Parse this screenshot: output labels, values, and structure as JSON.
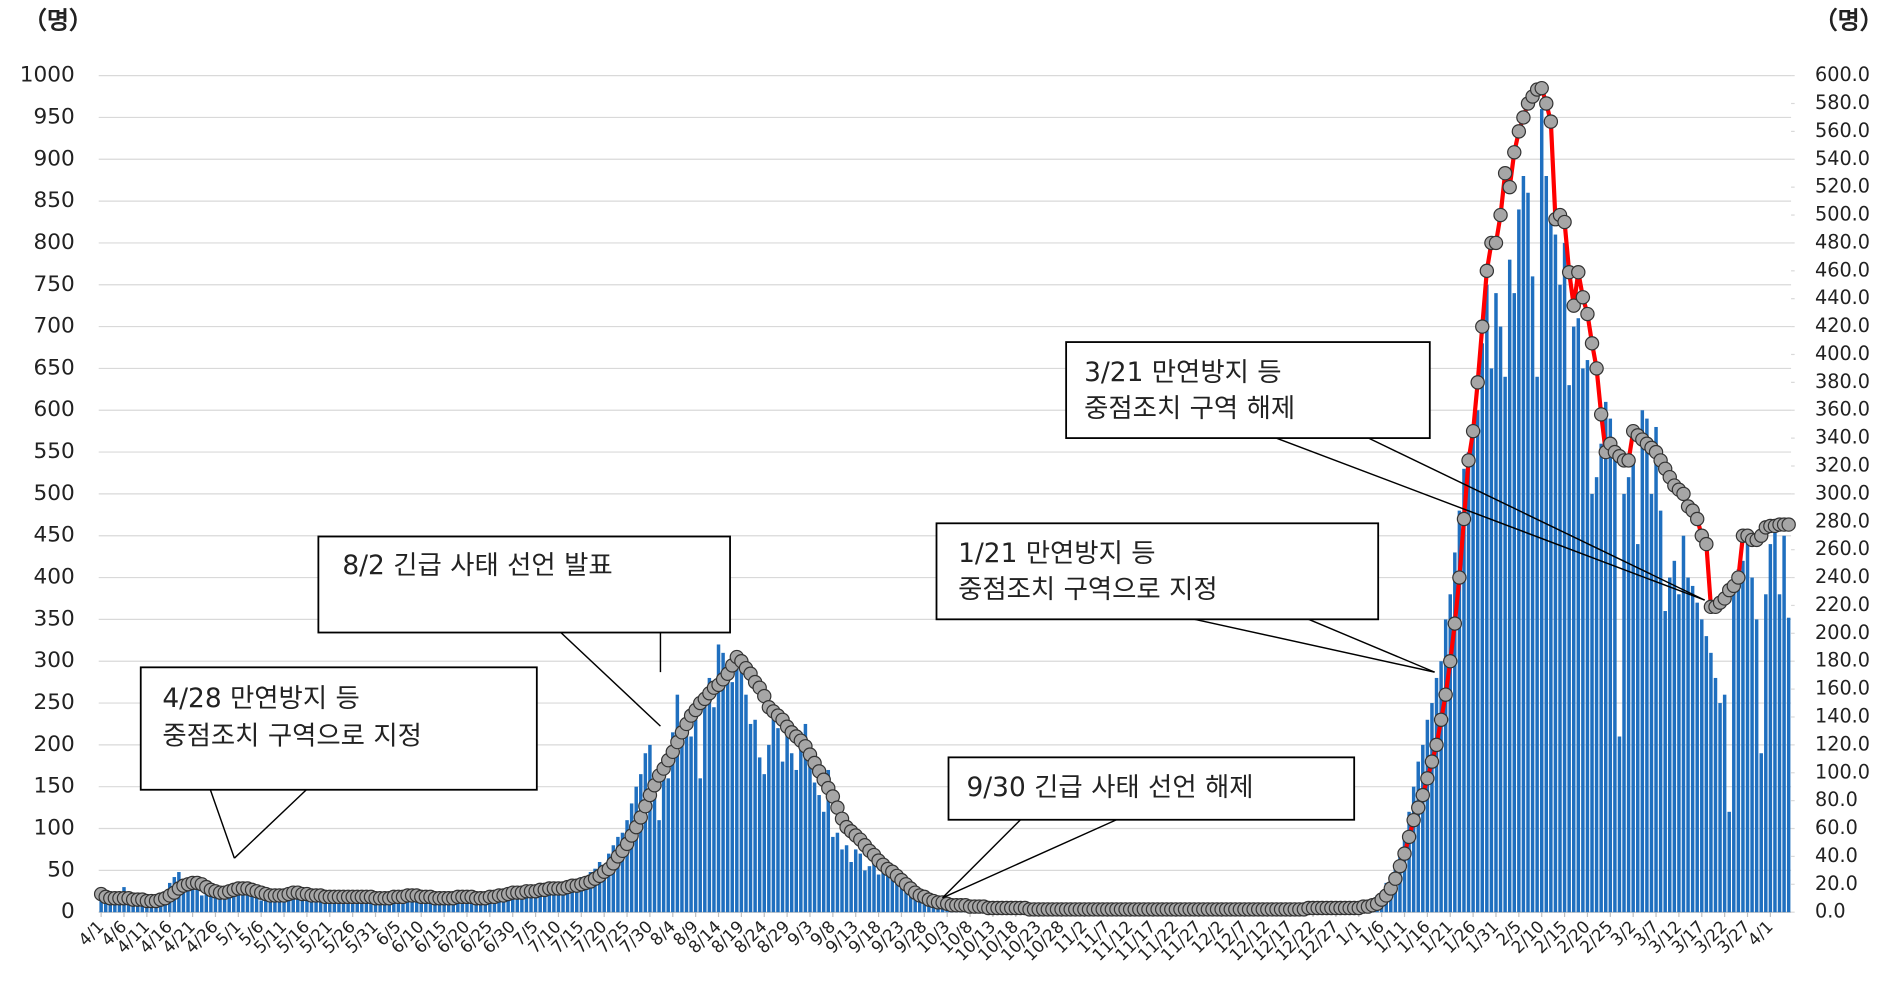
{
  "chart_data": {
    "type": "bar",
    "y_label": "（명）",
    "y2_label": "（명）",
    "ylim": [
      0,
      1000
    ],
    "yticks": [
      0,
      50,
      100,
      150,
      200,
      250,
      300,
      350,
      400,
      450,
      500,
      550,
      600,
      650,
      700,
      750,
      800,
      850,
      900,
      950,
      1000
    ],
    "y2lim": [
      0,
      600
    ],
    "y2ticks": [
      {
        "value": 0,
        "label": "0.0"
      },
      {
        "value": 20,
        "label": "20.0"
      },
      {
        "value": 40,
        "label": "40.0"
      },
      {
        "value": 60,
        "label": "60.0"
      },
      {
        "value": 80,
        "label": "80.0"
      },
      {
        "value": 100,
        "label": "100.0"
      },
      {
        "value": 120,
        "label": "120.0"
      },
      {
        "value": 140,
        "label": "140.0"
      },
      {
        "value": 160,
        "label": "160.0"
      },
      {
        "value": 180,
        "label": "180.0"
      },
      {
        "value": 200,
        "label": "200.0"
      },
      {
        "value": 220,
        "label": "220.0"
      },
      {
        "value": 240,
        "label": "240.0"
      },
      {
        "value": 260,
        "label": "260.0"
      },
      {
        "value": 280,
        "label": "280.0"
      },
      {
        "value": 300,
        "label": "300.0"
      },
      {
        "value": 320,
        "label": "320.0"
      },
      {
        "value": 340,
        "label": "340.0"
      },
      {
        "value": 360,
        "label": "360.0"
      },
      {
        "value": 380,
        "label": "380.0"
      },
      {
        "value": 400,
        "label": "400.0"
      },
      {
        "value": 420,
        "label": "420.0"
      },
      {
        "value": 440,
        "label": "440.0"
      },
      {
        "value": 460,
        "label": "460.0"
      },
      {
        "value": 480,
        "label": "480.0"
      },
      {
        "value": 500,
        "label": "500.0"
      },
      {
        "value": 520,
        "label": "520.0"
      },
      {
        "value": 540,
        "label": "540.0"
      },
      {
        "value": 560,
        "label": "560.0"
      },
      {
        "value": 580,
        "label": "580.0"
      },
      {
        "value": 600,
        "label": "600.0"
      }
    ],
    "grid": true,
    "categories": [
      "4/1",
      null,
      null,
      null,
      null,
      "4/6",
      null,
      null,
      null,
      null,
      "4/11",
      null,
      null,
      null,
      null,
      "4/16",
      null,
      null,
      null,
      null,
      "4/21",
      null,
      null,
      null,
      null,
      "4/26",
      null,
      null,
      null,
      null,
      "5/1",
      null,
      null,
      null,
      null,
      "5/6",
      null,
      null,
      null,
      null,
      "5/11",
      null,
      null,
      null,
      null,
      "5/16",
      null,
      null,
      null,
      null,
      "5/21",
      null,
      null,
      null,
      null,
      "5/26",
      null,
      null,
      null,
      null,
      "5/31",
      null,
      null,
      null,
      null,
      "6/5",
      null,
      null,
      null,
      null,
      "6/10",
      null,
      null,
      null,
      null,
      "6/15",
      null,
      null,
      null,
      null,
      "6/20",
      null,
      null,
      null,
      null,
      "6/25",
      null,
      null,
      null,
      null,
      "6/30",
      null,
      null,
      null,
      null,
      "7/5",
      null,
      null,
      null,
      null,
      "7/10",
      null,
      null,
      null,
      null,
      "7/15",
      null,
      null,
      null,
      null,
      "7/20",
      null,
      null,
      null,
      null,
      "7/25",
      null,
      null,
      null,
      null,
      "7/30",
      null,
      null,
      null,
      null,
      "8/4",
      null,
      null,
      null,
      null,
      "8/9",
      null,
      null,
      null,
      null,
      "8/14",
      null,
      null,
      null,
      null,
      "8/19",
      null,
      null,
      null,
      null,
      "8/24",
      null,
      null,
      null,
      null,
      "8/29",
      null,
      null,
      null,
      null,
      "9/3",
      null,
      null,
      null,
      null,
      "9/8",
      null,
      null,
      null,
      null,
      "9/13",
      null,
      null,
      null,
      null,
      "9/18",
      null,
      null,
      null,
      null,
      "9/23",
      null,
      null,
      null,
      null,
      "9/28",
      null,
      null,
      null,
      null,
      "10/3",
      null,
      null,
      null,
      null,
      "10/8",
      null,
      null,
      null,
      null,
      "10/13",
      null,
      null,
      null,
      null,
      "10/18",
      null,
      null,
      null,
      null,
      "10/23",
      null,
      null,
      null,
      null,
      "10/28",
      null,
      null,
      null,
      null,
      "11/2",
      null,
      null,
      null,
      null,
      "11/7",
      null,
      null,
      null,
      null,
      "11/12",
      null,
      null,
      null,
      null,
      "11/17",
      null,
      null,
      null,
      null,
      "11/22",
      null,
      null,
      null,
      null,
      "11/27",
      null,
      null,
      null,
      null,
      "12/2",
      null,
      null,
      null,
      null,
      "12/7",
      null,
      null,
      null,
      null,
      "12/12",
      null,
      null,
      null,
      null,
      "12/17",
      null,
      null,
      null,
      null,
      "12/22",
      null,
      null,
      null,
      null,
      "12/27",
      null,
      null,
      null,
      null,
      "1/1",
      null,
      null,
      null,
      null,
      "1/6",
      null,
      null,
      null,
      null,
      "1/11",
      null,
      null,
      null,
      null,
      "1/16",
      null,
      null,
      null,
      null,
      "1/21",
      null,
      null,
      null,
      null,
      "1/26",
      null,
      null,
      null,
      null,
      "1/31",
      null,
      null,
      null,
      null,
      "2/5",
      null,
      null,
      null,
      null,
      "2/10",
      null,
      null,
      null,
      null,
      "2/15",
      null,
      null,
      null,
      null,
      "2/20",
      null,
      null,
      null,
      null,
      "2/25",
      null,
      null,
      null,
      null,
      "3/2",
      null,
      null,
      null,
      null,
      "3/7",
      null,
      null,
      null,
      null,
      "3/12",
      null,
      null,
      null,
      null,
      "3/17",
      null,
      null,
      null,
      null,
      "3/22",
      null,
      null,
      null,
      null,
      "3/27",
      null,
      null,
      null,
      null,
      "4/1",
      null,
      null,
      null,
      null
    ],
    "series": [
      {
        "type": "bar",
        "color": "#1f6fbf",
        "values": [
          20,
          15,
          25,
          12,
          18,
          30,
          14,
          22,
          10,
          16,
          12,
          15,
          18,
          10,
          22,
          35,
          42,
          48,
          30,
          25,
          40,
          28,
          20,
          36,
          24,
          30,
          18,
          22,
          28,
          30,
          26,
          24,
          32,
          20,
          28,
          14,
          18,
          22,
          16,
          20,
          18,
          24,
          26,
          22,
          16,
          20,
          18,
          22,
          14,
          20,
          16,
          18,
          20,
          14,
          22,
          18,
          16,
          20,
          18,
          14,
          16,
          14,
          20,
          18,
          22,
          16,
          18,
          24,
          20,
          18,
          18,
          16,
          22,
          14,
          18,
          16,
          20,
          14,
          20,
          18,
          16,
          20,
          14,
          18,
          16,
          22,
          20,
          16,
          24,
          20,
          24,
          22,
          28,
          20,
          26,
          24,
          30,
          22,
          28,
          32,
          26,
          34,
          30,
          36,
          38,
          42,
          40,
          48,
          52,
          60,
          55,
          70,
          80,
          90,
          95,
          110,
          130,
          150,
          165,
          190,
          200,
          140,
          110,
          170,
          160,
          215,
          260,
          200,
          240,
          210,
          230,
          160,
          255,
          280,
          245,
          320,
          310,
          290,
          275,
          300,
          300,
          260,
          225,
          230,
          185,
          165,
          200,
          245,
          220,
          180,
          230,
          190,
          170,
          215,
          225,
          190,
          155,
          140,
          120,
          170,
          90,
          95,
          75,
          80,
          60,
          75,
          70,
          50,
          55,
          60,
          45,
          55,
          50,
          40,
          40,
          35,
          30,
          20,
          25,
          15,
          20,
          15,
          12,
          14,
          10,
          8,
          10,
          12,
          8,
          6,
          6,
          8,
          5,
          6,
          4,
          6,
          5,
          4,
          3,
          5,
          4,
          3,
          5,
          2,
          4,
          3,
          6,
          2,
          3,
          4,
          3,
          5,
          2,
          4,
          3,
          2,
          5,
          3,
          4,
          2,
          4,
          3,
          2,
          5,
          3,
          4,
          2,
          3,
          5,
          2,
          3,
          4,
          2,
          3,
          5,
          2,
          4,
          3,
          2,
          4,
          2,
          4,
          3,
          5,
          2,
          3,
          4,
          2,
          3,
          5,
          3,
          2,
          4,
          3,
          5,
          2,
          3,
          4,
          2,
          3,
          4,
          3,
          5,
          2,
          4,
          6,
          3,
          5,
          4,
          6,
          4,
          5,
          6,
          3,
          4,
          8,
          10,
          12,
          15,
          20,
          25,
          35,
          45,
          55,
          70,
          90,
          120,
          150,
          180,
          200,
          230,
          250,
          280,
          300,
          350,
          380,
          430,
          480,
          530,
          550,
          570,
          600,
          680,
          750,
          650,
          740,
          700,
          640,
          780,
          740,
          840,
          880,
          860,
          760,
          640,
          960,
          880,
          830,
          810,
          750,
          800,
          630,
          700,
          710,
          650,
          660,
          500,
          520,
          560,
          610,
          590,
          550,
          210,
          500,
          520,
          540,
          440,
          600,
          590,
          500,
          580,
          480,
          360,
          400,
          420,
          380,
          450,
          400,
          390,
          370,
          350,
          330,
          310,
          280,
          250,
          260,
          120,
          400,
          410,
          420,
          455,
          400,
          350,
          190,
          380,
          440,
          455,
          380,
          450,
          352
        ]
      },
      {
        "type": "line",
        "axis": "y2",
        "color": "#ff0000",
        "marker_color": "#a6a6a6",
        "values": [
          13,
          11,
          10,
          10,
          10,
          10,
          10,
          9,
          9,
          9,
          8,
          8,
          8,
          9,
          10,
          12,
          14,
          17,
          19,
          20,
          21,
          21,
          20,
          18,
          16,
          15,
          14,
          14,
          15,
          16,
          17,
          17,
          17,
          16,
          15,
          14,
          13,
          12,
          12,
          12,
          12,
          13,
          14,
          14,
          13,
          13,
          12,
          12,
          12,
          11,
          11,
          11,
          11,
          11,
          11,
          11,
          11,
          11,
          11,
          11,
          10,
          10,
          10,
          10,
          11,
          11,
          11,
          12,
          12,
          12,
          11,
          11,
          11,
          10,
          10,
          10,
          10,
          10,
          11,
          11,
          11,
          11,
          10,
          10,
          10,
          11,
          11,
          12,
          12,
          13,
          14,
          14,
          14,
          15,
          15,
          15,
          16,
          16,
          17,
          17,
          17,
          17,
          18,
          19,
          19,
          20,
          21,
          22,
          24,
          26,
          29,
          31,
          35,
          40,
          44,
          49,
          55,
          61,
          68,
          76,
          84,
          91,
          98,
          103,
          109,
          115,
          122,
          129,
          135,
          141,
          145,
          150,
          153,
          157,
          161,
          163,
          167,
          171,
          177,
          183,
          180,
          175,
          171,
          165,
          161,
          155,
          147,
          144,
          141,
          138,
          133,
          129,
          126,
          123,
          119,
          113,
          107,
          101,
          95,
          89,
          83,
          75,
          67,
          61,
          58,
          55,
          52,
          48,
          44,
          41,
          37,
          34,
          31,
          29,
          26,
          23,
          20,
          17,
          14,
          12,
          11,
          9,
          8,
          7,
          7,
          6,
          5,
          5,
          5,
          5,
          4,
          4,
          4,
          4,
          3,
          3,
          3,
          3,
          3,
          3,
          3,
          3,
          3,
          2,
          2,
          2,
          2,
          2,
          2,
          2,
          2,
          2,
          2,
          2,
          2,
          2,
          2,
          2,
          2,
          2,
          2,
          2,
          2,
          2,
          2,
          2,
          2,
          2,
          2,
          2,
          2,
          2,
          2,
          2,
          2,
          2,
          2,
          2,
          2,
          2,
          2,
          2,
          2,
          2,
          2,
          2,
          2,
          2,
          2,
          2,
          2,
          2,
          2,
          2,
          2,
          2,
          2,
          2,
          2,
          2,
          2,
          2,
          2,
          2,
          3,
          3,
          3,
          3,
          3,
          3,
          3,
          3,
          3,
          3,
          3,
          3,
          4,
          4,
          5,
          6,
          9,
          12,
          17,
          24,
          33,
          42,
          54,
          66,
          75,
          84,
          96,
          108,
          120,
          138,
          156,
          180,
          207,
          240,
          282,
          324,
          345,
          380,
          420,
          460,
          480,
          480,
          500,
          530,
          520,
          545,
          560,
          570,
          580,
          585,
          590,
          591,
          580,
          567,
          497,
          500,
          495,
          459,
          435,
          459,
          441,
          429,
          408,
          390,
          357,
          330,
          336,
          330,
          327,
          324,
          324,
          345,
          342,
          339,
          336,
          333,
          330,
          324,
          318,
          312,
          306,
          303,
          300,
          291,
          288,
          282,
          270,
          264,
          219,
          219,
          222,
          225,
          231,
          234,
          240,
          270,
          270,
          267,
          267,
          270,
          276,
          277,
          277,
          278,
          278,
          278
        ]
      }
    ],
    "annotations": [
      {
        "lines": [
          "4/28  만연방지 등",
          "중점조치 구역으로 지정"
        ]
      },
      {
        "lines": [
          "8/2  긴급 사태 선언 발표"
        ]
      },
      {
        "lines": [
          "9/30 긴급 사태 선언 해제"
        ]
      },
      {
        "lines": [
          "1/21 만연방지 등",
          "중점조치 구역으로 지정"
        ]
      },
      {
        "lines": [
          "3/21 만연방지 등",
          "중점조치 구역 해제"
        ]
      }
    ]
  }
}
